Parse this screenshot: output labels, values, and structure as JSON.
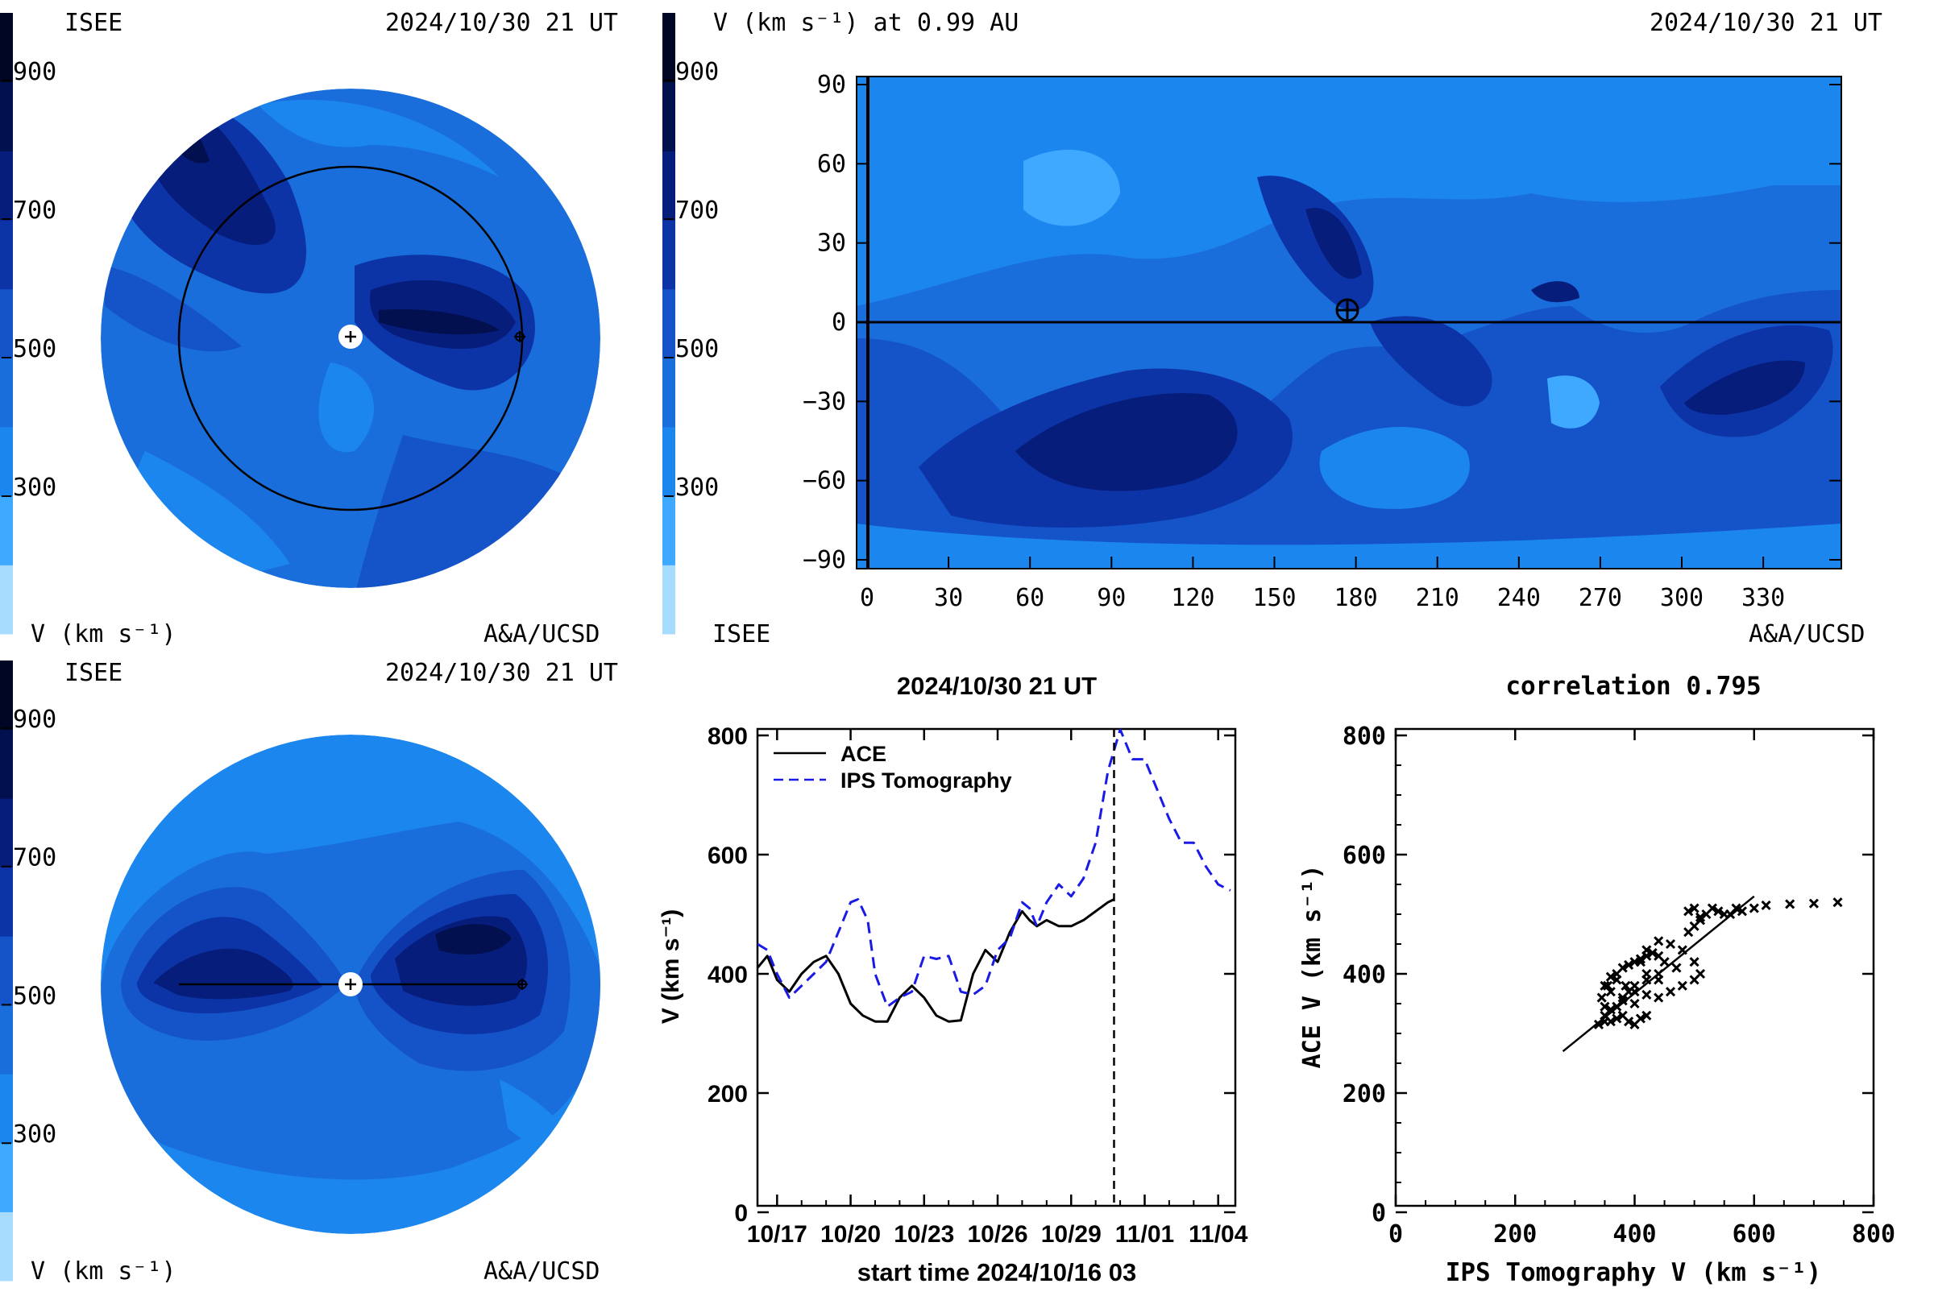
{
  "colorbar": {
    "ticks": [
      "900",
      "700",
      "500",
      "300"
    ],
    "colors": [
      "#a8dcff",
      "#3fa9ff",
      "#1c86ef",
      "#1a6edb",
      "#1454c8",
      "#0c34a6",
      "#061d7c",
      "#03104f",
      "#010625"
    ]
  },
  "panel_ecliptic": {
    "org_label": "ISEE",
    "date": "2024/10/30 21 UT",
    "var_label": "V (km s⁻¹)",
    "credit": "A&A/UCSD"
  },
  "panel_meridional": {
    "org_label": "ISEE",
    "date": "2024/10/30 21 UT",
    "var_label": "V (km s⁻¹)",
    "credit": "A&A/UCSD"
  },
  "panel_synoptic": {
    "title": "V (km s⁻¹) at 0.99 AU",
    "date": "2024/10/30 21 UT",
    "org_label": "ISEE",
    "credit": "A&A/UCSD",
    "y_ticks": [
      "90",
      "60",
      "30",
      "0",
      "−30",
      "−60",
      "−90"
    ],
    "x_ticks": [
      "0",
      "30",
      "60",
      "90",
      "120",
      "150",
      "180",
      "210",
      "240",
      "270",
      "300",
      "330"
    ]
  },
  "chart_data": [
    {
      "type": "line",
      "title": "2024/10/30 21 UT",
      "xlabel": "start time 2024/10/16 03",
      "ylabel": "V (km s⁻¹)",
      "ylim": [
        0,
        800
      ],
      "y_ticks": [
        "0",
        "200",
        "400",
        "600",
        "800"
      ],
      "x_ticks": [
        "10/17",
        "10/20",
        "10/23",
        "10/26",
        "10/29",
        "11/01",
        "11/04"
      ],
      "x_tick_days": [
        1,
        4,
        7,
        10,
        13,
        16,
        19
      ],
      "xlim_days": [
        0.2,
        19.7
      ],
      "current_time_day": 14.75,
      "legend_position": "top-left",
      "series": [
        {
          "name": "ACE",
          "color": "#000000",
          "dash": "solid",
          "days": [
            0.2,
            0.6,
            1.0,
            1.5,
            2.0,
            2.5,
            3.0,
            3.5,
            4.0,
            4.5,
            5.0,
            5.5,
            6.0,
            6.5,
            7.0,
            7.5,
            8.0,
            8.5,
            9.0,
            9.5,
            10.0,
            10.5,
            11.0,
            11.3,
            11.6,
            12.0,
            12.5,
            13.0,
            13.5,
            14.0,
            14.5,
            14.75
          ],
          "values": [
            410,
            430,
            390,
            370,
            400,
            420,
            430,
            400,
            350,
            330,
            320,
            320,
            360,
            380,
            360,
            330,
            320,
            322,
            400,
            440,
            420,
            470,
            505,
            490,
            480,
            490,
            480,
            480,
            490,
            505,
            520,
            525
          ]
        },
        {
          "name": "IPS Tomography",
          "color": "#1a1ae6",
          "dash": "dashed",
          "days": [
            0.2,
            0.6,
            1.0,
            1.5,
            2.0,
            2.5,
            3.0,
            3.5,
            4.0,
            4.3,
            4.7,
            5.0,
            5.5,
            6.0,
            6.5,
            7.0,
            7.5,
            8.0,
            8.5,
            9.0,
            9.5,
            10.0,
            10.5,
            11.0,
            11.3,
            11.6,
            12.0,
            12.5,
            13.0,
            13.5,
            14.0,
            14.5,
            15.0,
            15.5,
            16.0,
            16.5,
            17.0,
            17.5,
            18.0,
            18.5,
            19.0,
            19.5
          ],
          "values": [
            450,
            440,
            400,
            360,
            380,
            400,
            420,
            470,
            520,
            525,
            490,
            400,
            345,
            360,
            370,
            430,
            425,
            430,
            370,
            365,
            380,
            440,
            460,
            520,
            510,
            480,
            520,
            550,
            530,
            560,
            620,
            740,
            810,
            760,
            760,
            710,
            660,
            620,
            620,
            580,
            550,
            540
          ]
        }
      ]
    },
    {
      "type": "scatter",
      "title": "correlation 0.795",
      "xlabel": "IPS Tomography V (km s⁻¹)",
      "ylabel": "ACE V (km s⁻¹)",
      "xlim": [
        0,
        800
      ],
      "ylim": [
        0,
        800
      ],
      "x_ticks": [
        "0",
        "200",
        "400",
        "600",
        "800"
      ],
      "y_ticks": [
        "0",
        "200",
        "400",
        "600",
        "800"
      ],
      "points": [
        [
          340,
          315
        ],
        [
          350,
          320
        ],
        [
          360,
          320
        ],
        [
          370,
          325
        ],
        [
          380,
          330
        ],
        [
          390,
          320
        ],
        [
          400,
          315
        ],
        [
          410,
          325
        ],
        [
          420,
          330
        ],
        [
          400,
          350
        ],
        [
          380,
          360
        ],
        [
          360,
          370
        ],
        [
          350,
          380
        ],
        [
          360,
          395
        ],
        [
          370,
          400
        ],
        [
          380,
          410
        ],
        [
          390,
          415
        ],
        [
          400,
          420
        ],
        [
          410,
          425
        ],
        [
          420,
          430
        ],
        [
          430,
          435
        ],
        [
          440,
          430
        ],
        [
          450,
          420
        ],
        [
          440,
          400
        ],
        [
          420,
          390
        ],
        [
          400,
          380
        ],
        [
          390,
          370
        ],
        [
          380,
          355
        ],
        [
          370,
          345
        ],
        [
          360,
          340
        ],
        [
          350,
          345
        ],
        [
          345,
          360
        ],
        [
          355,
          380
        ],
        [
          370,
          390
        ],
        [
          385,
          380
        ],
        [
          400,
          370
        ],
        [
          420,
          365
        ],
        [
          440,
          360
        ],
        [
          460,
          370
        ],
        [
          480,
          380
        ],
        [
          500,
          390
        ],
        [
          510,
          400
        ],
        [
          500,
          420
        ],
        [
          480,
          440
        ],
        [
          460,
          450
        ],
        [
          440,
          455
        ],
        [
          420,
          440
        ],
        [
          410,
          420
        ],
        [
          420,
          400
        ],
        [
          440,
          390
        ],
        [
          490,
          470
        ],
        [
          500,
          480
        ],
        [
          510,
          490
        ],
        [
          520,
          500
        ],
        [
          530,
          510
        ],
        [
          540,
          505
        ],
        [
          550,
          500
        ],
        [
          560,
          500
        ],
        [
          570,
          510
        ],
        [
          580,
          505
        ],
        [
          500,
          510
        ],
        [
          490,
          505
        ],
        [
          510,
          495
        ],
        [
          620,
          515
        ],
        [
          660,
          517
        ],
        [
          700,
          518
        ],
        [
          740,
          520
        ],
        [
          600,
          510
        ],
        [
          470,
          410
        ],
        [
          350,
          330
        ]
      ],
      "fit_line": [
        [
          280,
          270
        ],
        [
          600,
          530
        ]
      ]
    }
  ]
}
